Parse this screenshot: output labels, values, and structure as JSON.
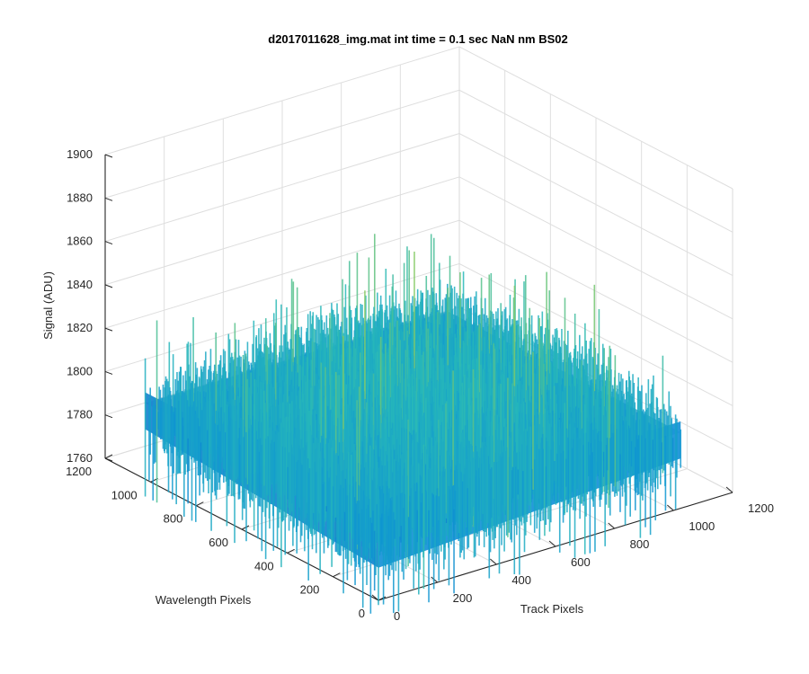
{
  "chart_data": {
    "type": "surface",
    "title": "d2017011628_img.mat int time = 0.1 sec  NaN nm BS02",
    "xlabel": "Track Pixels",
    "ylabel": "Wavelength Pixels",
    "zlabel": "Signal (ADU)",
    "xlim": [
      0,
      1200
    ],
    "ylim": [
      0,
      1200
    ],
    "zlim": [
      1760,
      1900
    ],
    "xticks": [
      0,
      200,
      400,
      600,
      800,
      1000,
      1200
    ],
    "yticks": [
      0,
      200,
      400,
      600,
      800,
      1000,
      1200
    ],
    "zticks": [
      1760,
      1780,
      1800,
      1820,
      1840,
      1860,
      1880,
      1900
    ],
    "grid": true,
    "colormap": "parula",
    "surface_extent": {
      "x": [
        0,
        1024
      ],
      "y": [
        0,
        1024
      ]
    },
    "signal_baseline": 1795,
    "signal_range_approx": [
      1755,
      1880
    ]
  }
}
